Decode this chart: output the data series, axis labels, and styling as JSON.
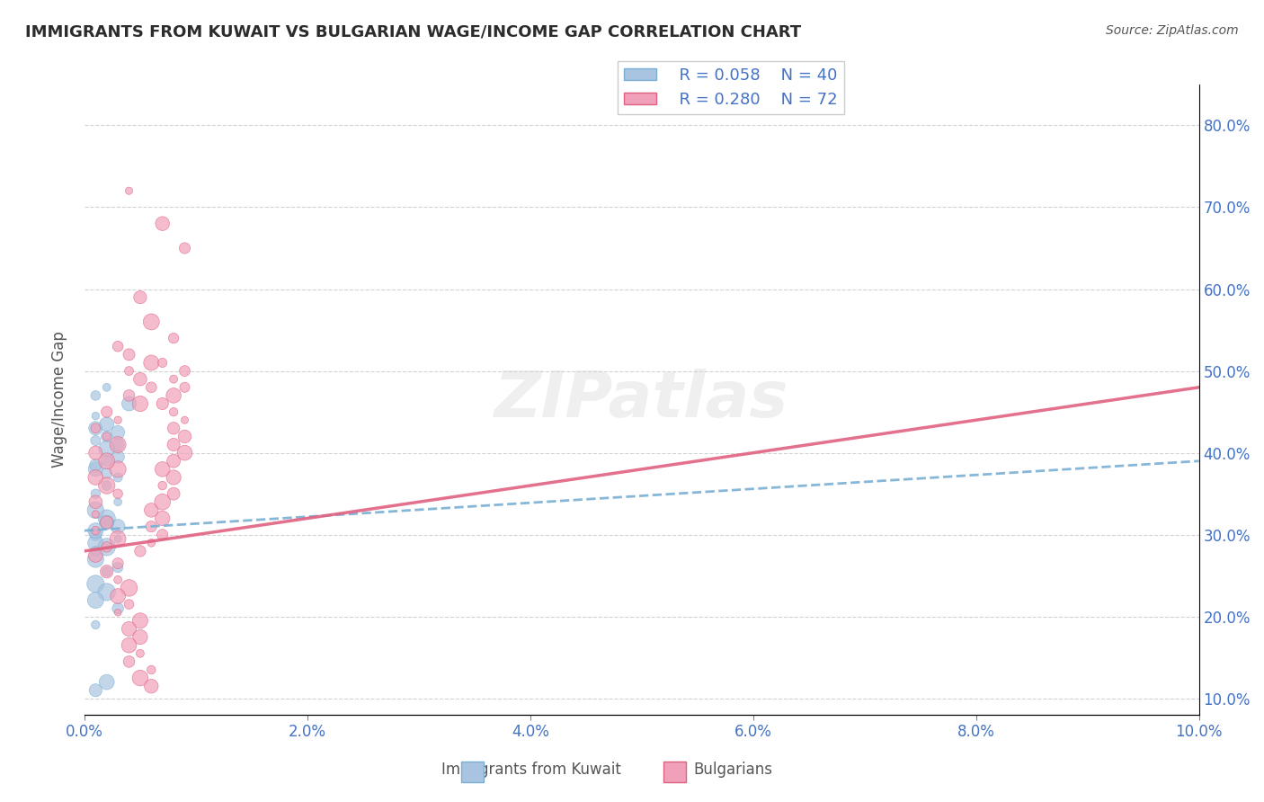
{
  "title": "IMMIGRANTS FROM KUWAIT VS BULGARIAN WAGE/INCOME GAP CORRELATION CHART",
  "source": "Source: ZipAtlas.com",
  "xlabel_bottom": "Immigrants from Kuwait",
  "xlabel_bottom2": "Bulgarians",
  "ylabel": "Wage/Income Gap",
  "r_kuwait": 0.058,
  "n_kuwait": 40,
  "r_bulgarian": 0.28,
  "n_bulgarian": 72,
  "x_min": 0.0,
  "x_max": 0.1,
  "y_min": 0.08,
  "y_max": 0.85,
  "color_kuwait": "#a8c4e0",
  "color_kuwait_line": "#7aafd4",
  "color_bulgarian": "#f0a0b8",
  "color_bulgarian_line": "#e06080",
  "color_axis_labels": "#4472c4",
  "color_title": "#2c2c2c",
  "watermark": "ZIPatlas",
  "kuwait_scatter": [
    [
      0.001,
      0.3
    ],
    [
      0.002,
      0.32
    ],
    [
      0.001,
      0.29
    ],
    [
      0.003,
      0.31
    ],
    [
      0.001,
      0.35
    ],
    [
      0.002,
      0.36
    ],
    [
      0.003,
      0.34
    ],
    [
      0.001,
      0.33
    ],
    [
      0.002,
      0.315
    ],
    [
      0.001,
      0.305
    ],
    [
      0.003,
      0.295
    ],
    [
      0.002,
      0.285
    ],
    [
      0.001,
      0.27
    ],
    [
      0.003,
      0.26
    ],
    [
      0.002,
      0.255
    ],
    [
      0.001,
      0.28
    ],
    [
      0.002,
      0.42
    ],
    [
      0.001,
      0.43
    ],
    [
      0.003,
      0.41
    ],
    [
      0.002,
      0.39
    ],
    [
      0.001,
      0.38
    ],
    [
      0.003,
      0.37
    ],
    [
      0.002,
      0.375
    ],
    [
      0.001,
      0.385
    ],
    [
      0.003,
      0.395
    ],
    [
      0.002,
      0.405
    ],
    [
      0.001,
      0.415
    ],
    [
      0.003,
      0.425
    ],
    [
      0.002,
      0.435
    ],
    [
      0.001,
      0.445
    ],
    [
      0.004,
      0.46
    ],
    [
      0.001,
      0.47
    ],
    [
      0.002,
      0.48
    ],
    [
      0.001,
      0.24
    ],
    [
      0.002,
      0.23
    ],
    [
      0.001,
      0.22
    ],
    [
      0.003,
      0.21
    ],
    [
      0.001,
      0.19
    ],
    [
      0.002,
      0.12
    ],
    [
      0.001,
      0.11
    ]
  ],
  "bulgarian_scatter": [
    [
      0.001,
      0.305
    ],
    [
      0.002,
      0.315
    ],
    [
      0.001,
      0.325
    ],
    [
      0.003,
      0.295
    ],
    [
      0.002,
      0.285
    ],
    [
      0.001,
      0.275
    ],
    [
      0.003,
      0.265
    ],
    [
      0.002,
      0.255
    ],
    [
      0.001,
      0.34
    ],
    [
      0.003,
      0.35
    ],
    [
      0.002,
      0.36
    ],
    [
      0.001,
      0.37
    ],
    [
      0.003,
      0.38
    ],
    [
      0.002,
      0.39
    ],
    [
      0.001,
      0.4
    ],
    [
      0.003,
      0.41
    ],
    [
      0.002,
      0.42
    ],
    [
      0.001,
      0.43
    ],
    [
      0.003,
      0.44
    ],
    [
      0.002,
      0.45
    ],
    [
      0.004,
      0.52
    ],
    [
      0.003,
      0.53
    ],
    [
      0.005,
      0.46
    ],
    [
      0.004,
      0.47
    ],
    [
      0.006,
      0.48
    ],
    [
      0.005,
      0.49
    ],
    [
      0.004,
      0.5
    ],
    [
      0.006,
      0.51
    ],
    [
      0.003,
      0.245
    ],
    [
      0.004,
      0.235
    ],
    [
      0.003,
      0.225
    ],
    [
      0.004,
      0.215
    ],
    [
      0.003,
      0.205
    ],
    [
      0.005,
      0.195
    ],
    [
      0.004,
      0.185
    ],
    [
      0.005,
      0.175
    ],
    [
      0.004,
      0.165
    ],
    [
      0.005,
      0.155
    ],
    [
      0.004,
      0.145
    ],
    [
      0.006,
      0.135
    ],
    [
      0.005,
      0.125
    ],
    [
      0.006,
      0.115
    ],
    [
      0.005,
      0.28
    ],
    [
      0.006,
      0.29
    ],
    [
      0.007,
      0.3
    ],
    [
      0.006,
      0.31
    ],
    [
      0.007,
      0.32
    ],
    [
      0.006,
      0.33
    ],
    [
      0.007,
      0.34
    ],
    [
      0.008,
      0.35
    ],
    [
      0.007,
      0.36
    ],
    [
      0.008,
      0.37
    ],
    [
      0.007,
      0.38
    ],
    [
      0.008,
      0.39
    ],
    [
      0.009,
      0.4
    ],
    [
      0.008,
      0.41
    ],
    [
      0.009,
      0.42
    ],
    [
      0.008,
      0.43
    ],
    [
      0.009,
      0.44
    ],
    [
      0.008,
      0.45
    ],
    [
      0.004,
      0.72
    ],
    [
      0.007,
      0.68
    ],
    [
      0.009,
      0.65
    ],
    [
      0.005,
      0.59
    ],
    [
      0.006,
      0.56
    ],
    [
      0.008,
      0.54
    ],
    [
      0.007,
      0.46
    ],
    [
      0.008,
      0.47
    ],
    [
      0.009,
      0.48
    ],
    [
      0.008,
      0.49
    ],
    [
      0.009,
      0.5
    ],
    [
      0.007,
      0.51
    ]
  ]
}
